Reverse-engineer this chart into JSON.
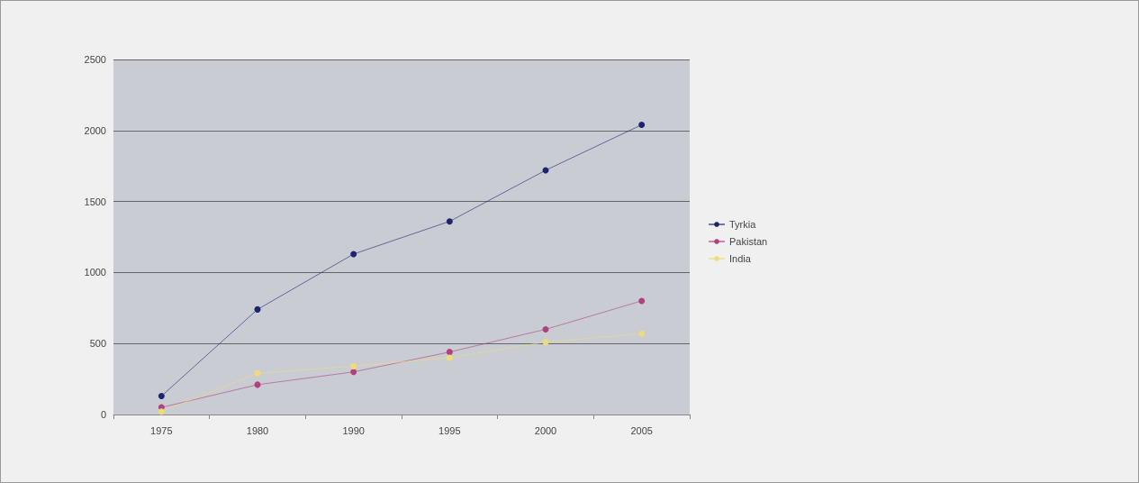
{
  "chart_data": {
    "type": "line",
    "categories": [
      "1975",
      "1980",
      "1990",
      "1995",
      "2000",
      "2005"
    ],
    "series": [
      {
        "name": "Tyrkia",
        "color": "#1f2470",
        "values": [
          130,
          740,
          1130,
          1360,
          1720,
          2040
        ]
      },
      {
        "name": "Pakistan",
        "color": "#b0407e",
        "values": [
          50,
          210,
          300,
          440,
          600,
          800
        ]
      },
      {
        "name": "India",
        "color": "#eedc78",
        "values": [
          20,
          290,
          340,
          400,
          510,
          570
        ]
      }
    ],
    "ylim": [
      0,
      2500
    ],
    "yticks": [
      0,
      500,
      1000,
      1500,
      2000,
      2500
    ],
    "grid": "y",
    "legend": "right",
    "marker": "circle"
  }
}
